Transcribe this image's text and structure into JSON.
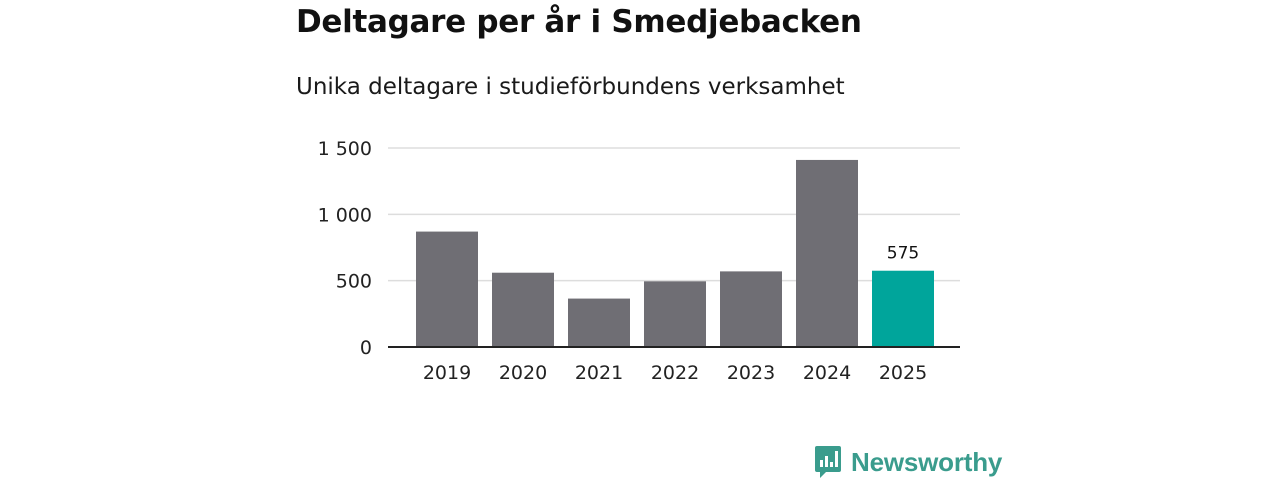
{
  "chart_data": {
    "type": "bar",
    "title": "Deltagare per år i Smedjebacken",
    "subtitle": "Unika deltagare i studieförbundens verksamhet",
    "categories": [
      "2019",
      "2020",
      "2021",
      "2022",
      "2023",
      "2024",
      "2025"
    ],
    "values": [
      870,
      560,
      365,
      495,
      570,
      1410,
      575
    ],
    "ylim": [
      0,
      1500
    ],
    "yticks": [
      0,
      500,
      1000,
      1500
    ],
    "ytick_labels": [
      "0",
      "500",
      "1 000",
      "1 500"
    ],
    "highlight_index": 6,
    "highlight_label": "575",
    "xlabel": "",
    "ylabel": "",
    "grid": true
  },
  "colors": {
    "bar": "#6f6e74",
    "highlight": "#00a59b",
    "grid": "#dddddd",
    "axis": "#222222",
    "brand": "#3a9c8d"
  },
  "brand": {
    "name": "Newsworthy",
    "icon": "newsworthy-logo-icon"
  }
}
